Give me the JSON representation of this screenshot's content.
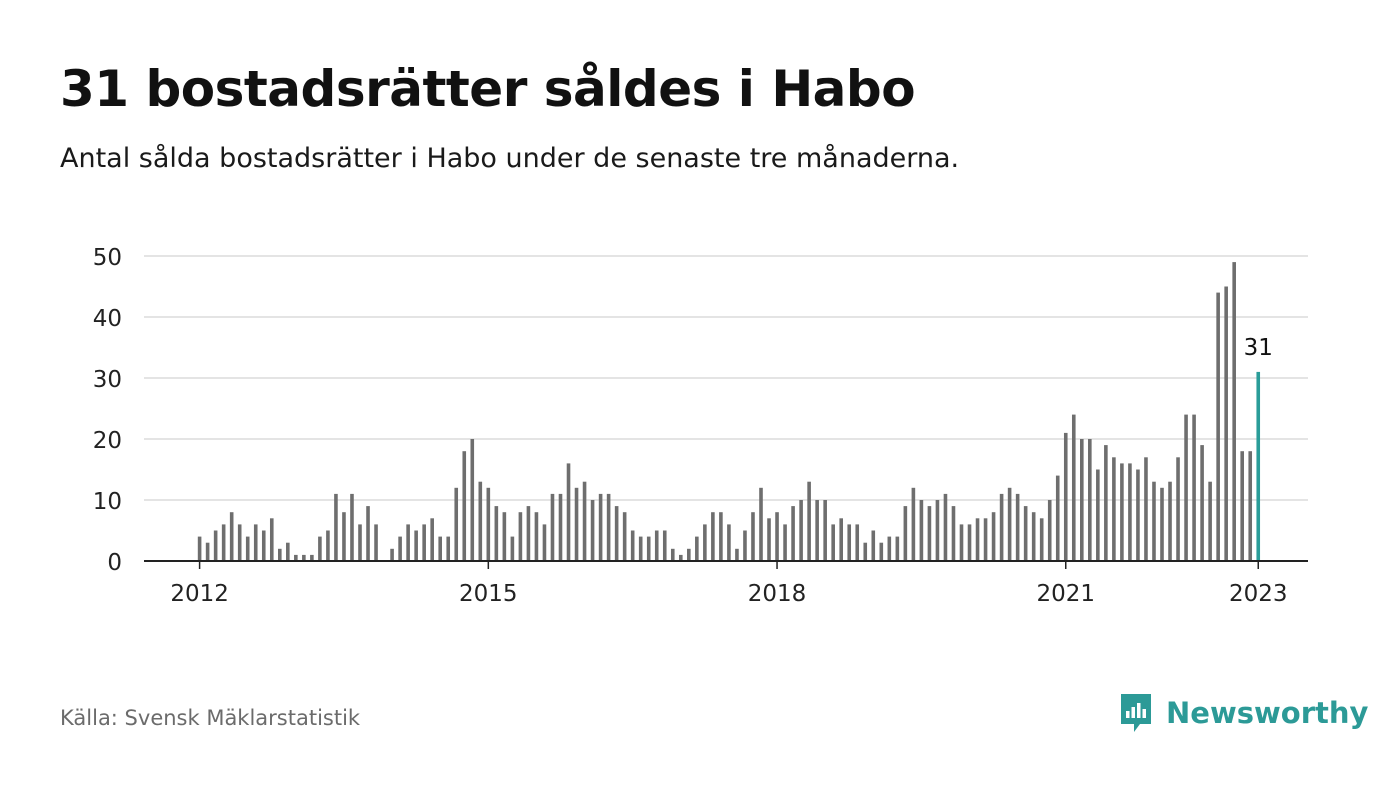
{
  "title": "31 bostadsrätter såldes i Habo",
  "subtitle": "Antal sålda bostadsrätter i Habo under de senaste tre månaderna.",
  "source": "Källa: Svensk Mäklarstatistik",
  "brand": {
    "name": "Newsworthy",
    "icon": "newsworthy-logo-icon",
    "color": "#2c9a97"
  },
  "colors": {
    "bar": "#6e6e6e",
    "highlight": "#2a9d99",
    "grid": "#dcdcdc",
    "axis": "#222222"
  },
  "chart_data": {
    "type": "bar",
    "title": "31 bostadsrätter såldes i Habo",
    "subtitle": "Antal sålda bostadsrätter i Habo under de senaste tre månaderna.",
    "xlabel": "",
    "ylabel": "",
    "ylim": [
      0,
      50
    ],
    "yticks": [
      0,
      10,
      20,
      30,
      40,
      50
    ],
    "xticks": [
      "2012",
      "2015",
      "2018",
      "2021",
      "2023"
    ],
    "grid": true,
    "first_period": "2012-01",
    "last_period": "2023-01",
    "values": [
      4,
      3,
      5,
      6,
      8,
      6,
      4,
      6,
      5,
      7,
      2,
      3,
      1,
      1,
      1,
      4,
      5,
      11,
      8,
      11,
      6,
      9,
      6,
      0,
      2,
      4,
      6,
      5,
      6,
      7,
      4,
      4,
      12,
      18,
      20,
      13,
      12,
      9,
      8,
      4,
      8,
      9,
      8,
      6,
      11,
      11,
      16,
      12,
      13,
      10,
      11,
      11,
      9,
      8,
      5,
      4,
      4,
      5,
      5,
      2,
      1,
      2,
      4,
      6,
      8,
      8,
      6,
      2,
      5,
      8,
      12,
      7,
      8,
      6,
      9,
      10,
      13,
      10,
      10,
      6,
      7,
      6,
      6,
      3,
      5,
      3,
      4,
      4,
      9,
      12,
      10,
      9,
      10,
      11,
      9,
      6,
      6,
      7,
      7,
      8,
      11,
      12,
      11,
      9,
      8,
      7,
      10,
      14,
      21,
      24,
      20,
      20,
      15,
      19,
      17,
      16,
      16,
      15,
      17,
      13,
      12,
      13,
      17,
      24,
      24,
      19,
      13,
      44,
      45,
      49,
      18,
      18,
      31
    ],
    "highlight": {
      "period": "2023-01",
      "value": 31,
      "label": "31"
    }
  }
}
